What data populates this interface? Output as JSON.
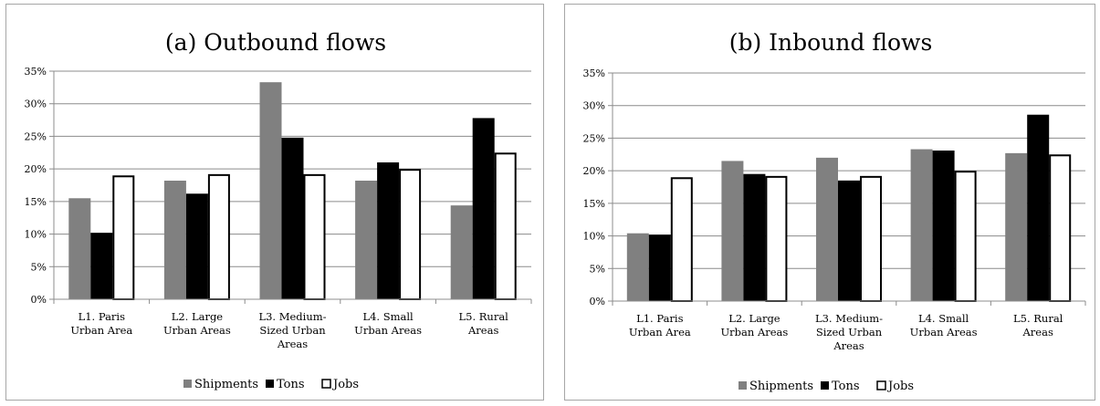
{
  "chart_data": [
    {
      "type": "bar",
      "title": "(a) Outbound flows",
      "categories": [
        [
          "L1. Paris",
          "Urban Area"
        ],
        [
          "L2. Large",
          "Urban Areas"
        ],
        [
          "L3. Medium-",
          "Sized Urban",
          "Areas"
        ],
        [
          "L4. Small",
          "Urban Areas"
        ],
        [
          "L5. Rural",
          "Areas"
        ]
      ],
      "series": [
        {
          "name": "Shipments",
          "color": "#808080",
          "values": [
            15.5,
            18.2,
            33.3,
            18.2,
            14.4
          ]
        },
        {
          "name": "Tons",
          "color": "#000000",
          "values": [
            10.2,
            16.2,
            24.8,
            21.0,
            27.8
          ]
        },
        {
          "name": "Jobs",
          "color": "#ffffff",
          "values": [
            19.0,
            19.2,
            19.2,
            20.0,
            22.5
          ]
        }
      ],
      "ylim": [
        0,
        35
      ],
      "yticks": [
        "0%",
        "5%",
        "10%",
        "15%",
        "20%",
        "25%",
        "30%",
        "35%"
      ],
      "grid": true,
      "legend_position": "bottom"
    },
    {
      "type": "bar",
      "title": "(b) Inbound flows",
      "categories": [
        [
          "L1. Paris",
          "Urban Area"
        ],
        [
          "L2. Large",
          "Urban Areas"
        ],
        [
          "L3. Medium-",
          "Sized Urban",
          "Areas"
        ],
        [
          "L4. Small",
          "Urban Areas"
        ],
        [
          "L5. Rural",
          "Areas"
        ]
      ],
      "series": [
        {
          "name": "Shipments",
          "color": "#808080",
          "values": [
            10.4,
            21.5,
            22.0,
            23.3,
            22.7
          ]
        },
        {
          "name": "Tons",
          "color": "#000000",
          "values": [
            10.2,
            19.5,
            18.5,
            23.1,
            28.6
          ]
        },
        {
          "name": "Jobs",
          "color": "#ffffff",
          "values": [
            19.0,
            19.2,
            19.2,
            20.0,
            22.5
          ]
        }
      ],
      "ylim": [
        0,
        35
      ],
      "yticks": [
        "0%",
        "5%",
        "10%",
        "15%",
        "20%",
        "25%",
        "30%",
        "35%"
      ],
      "grid": true,
      "legend_position": "bottom"
    }
  ]
}
